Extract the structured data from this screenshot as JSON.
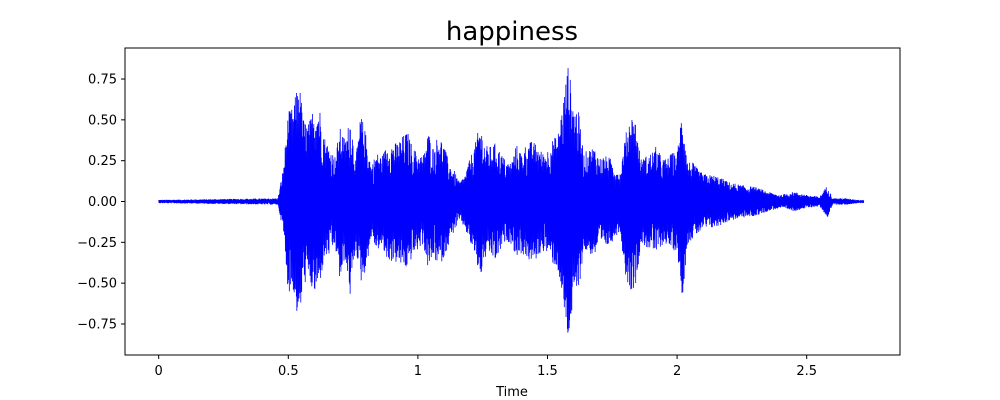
{
  "chart_data": {
    "type": "line",
    "title": "happiness",
    "xlabel": "Time",
    "ylabel": "",
    "xlim": [
      -0.13,
      2.86
    ],
    "ylim": [
      -0.94,
      0.94
    ],
    "x_ticks": [
      0,
      0.5,
      1,
      1.5,
      2,
      2.5
    ],
    "x_tick_labels": [
      "0",
      "0.5",
      "1",
      "1.5",
      "2",
      "2.5"
    ],
    "y_ticks": [
      0.75,
      0.5,
      0.25,
      0.0,
      -0.25,
      -0.5,
      -0.75
    ],
    "y_tick_labels": [
      "0.75",
      "0.50",
      "0.25",
      "0.00",
      "−0.25",
      "−0.50",
      "−0.75"
    ],
    "grid": false,
    "color": "#0000ff",
    "series": [
      {
        "x": [
          0,
          0.46,
          0.48,
          0.5,
          0.52,
          0.54,
          0.56,
          0.58,
          0.6,
          0.62,
          0.64,
          0.66,
          0.68,
          0.7,
          0.72,
          0.74,
          0.76,
          0.78,
          0.8,
          0.82,
          0.84,
          0.86,
          0.88,
          0.9,
          0.92,
          0.94,
          0.96,
          0.98,
          1.0,
          1.02,
          1.04,
          1.06,
          1.08,
          1.1,
          1.12,
          1.14,
          1.16,
          1.18,
          1.2,
          1.22,
          1.24,
          1.26,
          1.28,
          1.3,
          1.32,
          1.34,
          1.36,
          1.38,
          1.4,
          1.42,
          1.44,
          1.46,
          1.48,
          1.5,
          1.52,
          1.54,
          1.56,
          1.58,
          1.6,
          1.62,
          1.64,
          1.66,
          1.68,
          1.7,
          1.72,
          1.74,
          1.76,
          1.78,
          1.8,
          1.82,
          1.84,
          1.86,
          1.88,
          1.9,
          1.92,
          1.94,
          1.96,
          1.98,
          2.0,
          2.02,
          2.04,
          2.06,
          2.08,
          2.1,
          2.15,
          2.2,
          2.25,
          2.3,
          2.35,
          2.4,
          2.45,
          2.5,
          2.55,
          2.58,
          2.6,
          2.65,
          2.7,
          2.72
        ],
        "upper": [
          0.01,
          0.02,
          0.2,
          0.55,
          0.58,
          0.76,
          0.5,
          0.48,
          0.6,
          0.59,
          0.4,
          0.33,
          0.28,
          0.45,
          0.38,
          0.53,
          0.26,
          0.54,
          0.41,
          0.22,
          0.3,
          0.28,
          0.34,
          0.36,
          0.36,
          0.4,
          0.43,
          0.33,
          0.3,
          0.28,
          0.43,
          0.33,
          0.42,
          0.35,
          0.24,
          0.19,
          0.12,
          0.16,
          0.26,
          0.35,
          0.48,
          0.34,
          0.34,
          0.36,
          0.3,
          0.25,
          0.24,
          0.35,
          0.3,
          0.36,
          0.37,
          0.35,
          0.3,
          0.32,
          0.38,
          0.41,
          0.62,
          0.85,
          0.6,
          0.55,
          0.3,
          0.32,
          0.34,
          0.27,
          0.28,
          0.27,
          0.22,
          0.18,
          0.4,
          0.54,
          0.5,
          0.26,
          0.28,
          0.3,
          0.34,
          0.27,
          0.26,
          0.3,
          0.3,
          0.59,
          0.25,
          0.24,
          0.2,
          0.17,
          0.16,
          0.12,
          0.1,
          0.09,
          0.06,
          0.04,
          0.06,
          0.04,
          0.03,
          0.1,
          0.02,
          0.02,
          0.01,
          0.01
        ],
        "lower": [
          -0.01,
          -0.02,
          -0.18,
          -0.56,
          -0.55,
          -0.77,
          -0.5,
          -0.5,
          -0.58,
          -0.52,
          -0.35,
          -0.33,
          -0.27,
          -0.5,
          -0.36,
          -0.6,
          -0.28,
          -0.5,
          -0.42,
          -0.22,
          -0.3,
          -0.28,
          -0.36,
          -0.37,
          -0.38,
          -0.4,
          -0.42,
          -0.33,
          -0.3,
          -0.26,
          -0.42,
          -0.34,
          -0.4,
          -0.35,
          -0.26,
          -0.18,
          -0.12,
          -0.16,
          -0.25,
          -0.33,
          -0.48,
          -0.35,
          -0.33,
          -0.37,
          -0.3,
          -0.24,
          -0.26,
          -0.34,
          -0.32,
          -0.35,
          -0.38,
          -0.35,
          -0.3,
          -0.32,
          -0.38,
          -0.42,
          -0.65,
          -0.86,
          -0.63,
          -0.55,
          -0.3,
          -0.32,
          -0.34,
          -0.27,
          -0.28,
          -0.27,
          -0.22,
          -0.18,
          -0.45,
          -0.55,
          -0.52,
          -0.26,
          -0.28,
          -0.3,
          -0.32,
          -0.27,
          -0.26,
          -0.3,
          -0.3,
          -0.6,
          -0.26,
          -0.23,
          -0.2,
          -0.17,
          -0.16,
          -0.12,
          -0.1,
          -0.09,
          -0.06,
          -0.04,
          -0.06,
          -0.04,
          -0.03,
          -0.1,
          -0.02,
          -0.02,
          -0.01,
          -0.01
        ]
      }
    ]
  }
}
